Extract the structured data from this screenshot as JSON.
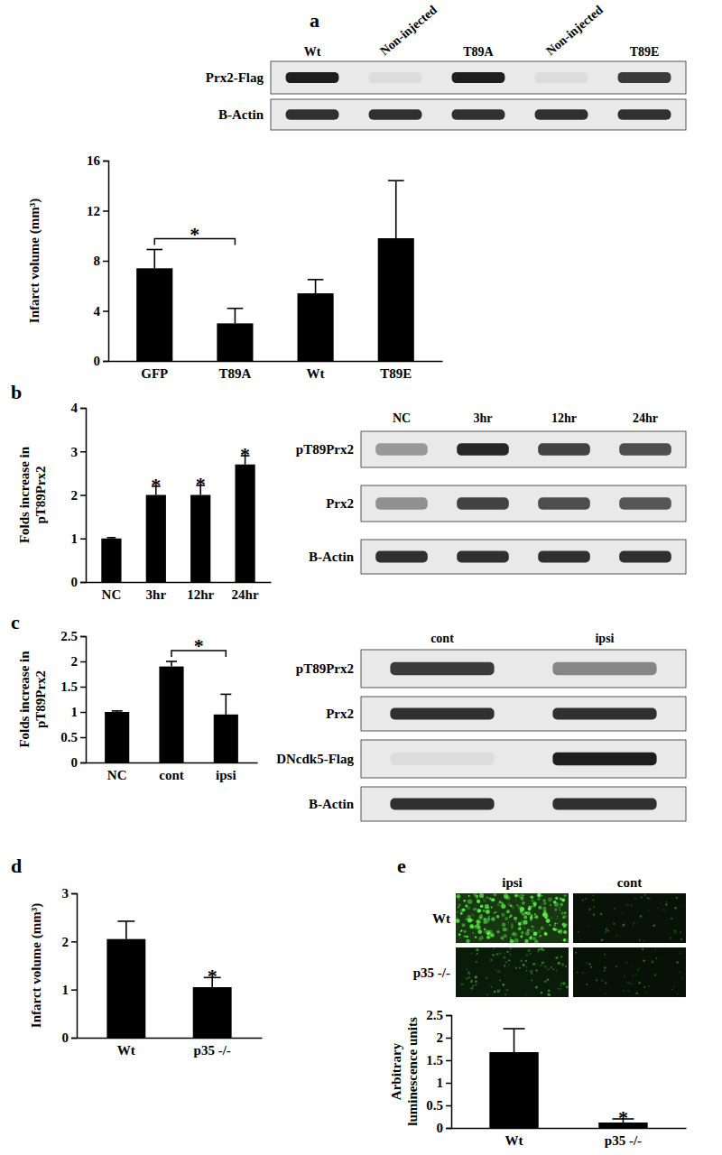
{
  "chart_data": [
    {
      "type": "bar",
      "title": "a",
      "ylabel": "Infarct volume (mm³)",
      "categories": [
        "GFP",
        "T89A",
        "Wt",
        "T89E"
      ],
      "values": [
        7.4,
        3.0,
        5.4,
        9.8
      ],
      "errors": [
        1.5,
        1.2,
        1.1,
        4.6
      ],
      "color": "#000000",
      "ylim": [
        0,
        16
      ],
      "yticks": [
        0,
        4,
        8,
        12,
        16
      ],
      "grid": false,
      "annotations": [
        {
          "text": "*",
          "x": [
            0,
            1
          ]
        }
      ]
    },
    {
      "type": "bar",
      "title": "b",
      "ylabel": "Folds increase in pT89Prx2",
      "categories": [
        "NC",
        "3hr",
        "12hr",
        "24hr"
      ],
      "values": [
        1.0,
        2.0,
        2.0,
        2.7
      ],
      "errors": [
        0.02,
        0.2,
        0.22,
        0.2
      ],
      "color": "#000000",
      "ylim": [
        0,
        4
      ],
      "yticks": [
        0,
        1,
        2,
        3,
        4
      ],
      "grid": false,
      "annotations": [
        {
          "text": "*",
          "x": 1
        },
        {
          "text": "*",
          "x": 2
        },
        {
          "text": "*",
          "x": 3
        }
      ]
    },
    {
      "type": "bar",
      "title": "c",
      "ylabel": "Folds increase in pT89Prx2",
      "categories": [
        "NC",
        "cont",
        "ipsi"
      ],
      "values": [
        1.0,
        1.9,
        0.95
      ],
      "errors": [
        0.02,
        0.1,
        0.4
      ],
      "color": "#000000",
      "ylim": [
        0,
        2.5
      ],
      "yticks": [
        0,
        0.5,
        1,
        1.5,
        2,
        2.5
      ],
      "grid": false,
      "annotations": [
        {
          "text": "*",
          "x": [
            1,
            2
          ]
        }
      ]
    },
    {
      "type": "bar",
      "title": "d",
      "ylabel": "Infarct volume (mm³)",
      "categories": [
        "Wt",
        "p35 -/-"
      ],
      "values": [
        2.05,
        1.05
      ],
      "errors": [
        0.37,
        0.2
      ],
      "color": "#000000",
      "ylim": [
        0,
        3
      ],
      "yticks": [
        0,
        1,
        2,
        3
      ],
      "grid": false,
      "annotations": [
        {
          "text": "*",
          "x": 1
        }
      ]
    },
    {
      "type": "bar",
      "title": "e",
      "ylabel": "Arbitrary luminescence units",
      "categories": [
        "Wt",
        "p35 -/-"
      ],
      "values": [
        1.68,
        0.12
      ],
      "errors": [
        0.52,
        0.08
      ],
      "color": "#000000",
      "ylim": [
        0,
        2.5
      ],
      "yticks": [
        0,
        0.5,
        1,
        1.5,
        2,
        2.5
      ],
      "grid": false,
      "annotations": [
        {
          "text": "*",
          "x": 1
        }
      ]
    }
  ],
  "blots": {
    "a": {
      "lanes": [
        "Wt",
        "Non-injected",
        "T89A",
        "Non-injected",
        "T89E"
      ],
      "rows": [
        {
          "label": "Prx2-Flag",
          "bands": [
            1,
            0,
            1,
            0,
            0.85
          ]
        },
        {
          "label": "B-Actin",
          "bands": [
            0.9,
            0.9,
            0.9,
            0.9,
            0.9
          ]
        }
      ]
    },
    "b": {
      "lanes": [
        "NC",
        "3hr",
        "12hr",
        "24hr"
      ],
      "rows": [
        {
          "label": "pT89Prx2",
          "bands": [
            0.35,
            0.95,
            0.8,
            0.75
          ]
        },
        {
          "label": "Prx2",
          "bands": [
            0.4,
            0.8,
            0.75,
            0.7
          ]
        },
        {
          "label": "B-Actin",
          "bands": [
            0.9,
            0.9,
            0.9,
            0.9
          ]
        }
      ]
    },
    "c": {
      "lanes": [
        "cont",
        "ipsi"
      ],
      "rows": [
        {
          "label": "pT89Prx2",
          "bands": [
            0.85,
            0.45
          ]
        },
        {
          "label": "Prx2",
          "bands": [
            0.9,
            0.9
          ]
        },
        {
          "label": "DNcdk5-Flag",
          "bands": [
            0,
            1
          ]
        },
        {
          "label": "B-Actin",
          "bands": [
            0.9,
            0.9
          ]
        }
      ]
    }
  },
  "images": {
    "e": {
      "columns": [
        "ipsi",
        "cont"
      ],
      "rows": [
        "Wt",
        "p35 -/-"
      ],
      "intensity": [
        [
          0.9,
          0.12
        ],
        [
          0.3,
          0.08
        ]
      ]
    }
  }
}
